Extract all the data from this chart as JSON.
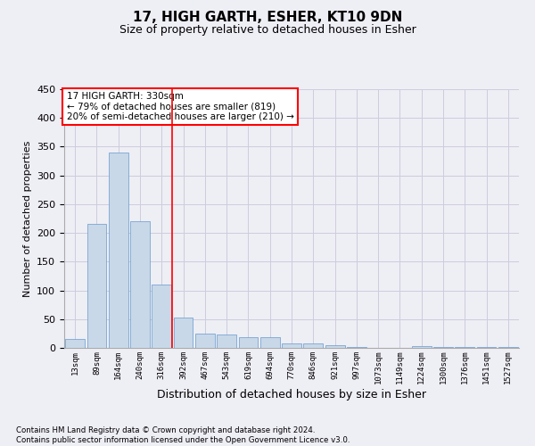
{
  "title": "17, HIGH GARTH, ESHER, KT10 9DN",
  "subtitle": "Size of property relative to detached houses in Esher",
  "xlabel": "Distribution of detached houses by size in Esher",
  "ylabel": "Number of detached properties",
  "bin_labels": [
    "13sqm",
    "89sqm",
    "164sqm",
    "240sqm",
    "316sqm",
    "392sqm",
    "467sqm",
    "543sqm",
    "619sqm",
    "694sqm",
    "770sqm",
    "846sqm",
    "921sqm",
    "997sqm",
    "1073sqm",
    "1149sqm",
    "1224sqm",
    "1300sqm",
    "1376sqm",
    "1451sqm",
    "1527sqm"
  ],
  "bar_values": [
    15,
    215,
    340,
    220,
    110,
    53,
    25,
    24,
    19,
    18,
    8,
    7,
    5,
    2,
    0,
    0,
    3,
    2,
    2,
    1,
    2
  ],
  "bar_color": "#c8d8e8",
  "bar_edge_color": "#6699cc",
  "annotation_text": "17 HIGH GARTH: 330sqm\n← 79% of detached houses are smaller (819)\n20% of semi-detached houses are larger (210) →",
  "annotation_box_color": "white",
  "annotation_box_edge_color": "red",
  "vline_x": 4.5,
  "vline_color": "red",
  "ylim": [
    0,
    450
  ],
  "yticks": [
    0,
    50,
    100,
    150,
    200,
    250,
    300,
    350,
    400,
    450
  ],
  "grid_color": "#ccccdd",
  "footnote": "Contains HM Land Registry data © Crown copyright and database right 2024.\nContains public sector information licensed under the Open Government Licence v3.0.",
  "bg_color": "#eeeef5"
}
